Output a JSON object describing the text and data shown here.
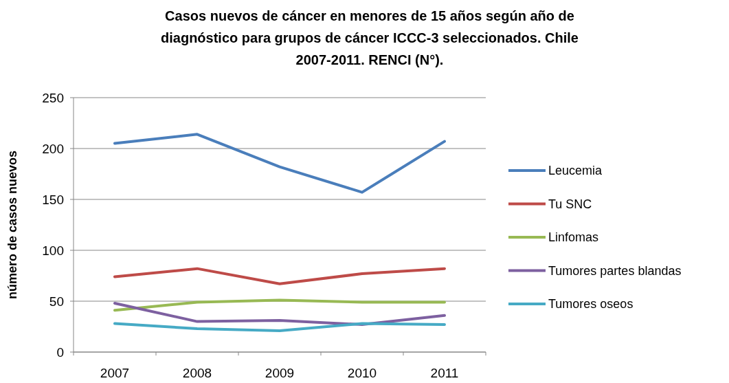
{
  "chart_data": {
    "type": "line",
    "title": "Casos nuevos de cáncer en menores de 15 años según año de diagnóstico para grupos de cáncer ICCC-3 seleccionados. Chile 2007-2011. RENCI (N°).",
    "ylabel": "número de casos nuevos",
    "categories": [
      "2007",
      "2008",
      "2009",
      "2010",
      "2011"
    ],
    "ylim": [
      0,
      250
    ],
    "yticks": [
      0,
      50,
      100,
      150,
      200,
      250
    ],
    "grid": "y",
    "legend": "right",
    "marker": "none",
    "line_style": "solid",
    "series": [
      {
        "name": "Leucemia",
        "color": "#4a7ebb",
        "values": [
          205,
          214,
          182,
          157,
          207
        ]
      },
      {
        "name": "Tu SNC",
        "color": "#be4b48",
        "values": [
          74,
          82,
          67,
          77,
          82
        ]
      },
      {
        "name": "Linfomas",
        "color": "#98b954",
        "values": [
          41,
          49,
          51,
          49,
          49
        ]
      },
      {
        "name": "Tumores partes blandas",
        "color": "#7d60a0",
        "values": [
          48,
          30,
          31,
          27,
          36
        ]
      },
      {
        "name": "Tumores oseos",
        "color": "#46aac5",
        "values": [
          28,
          23,
          21,
          28,
          27
        ]
      }
    ]
  }
}
